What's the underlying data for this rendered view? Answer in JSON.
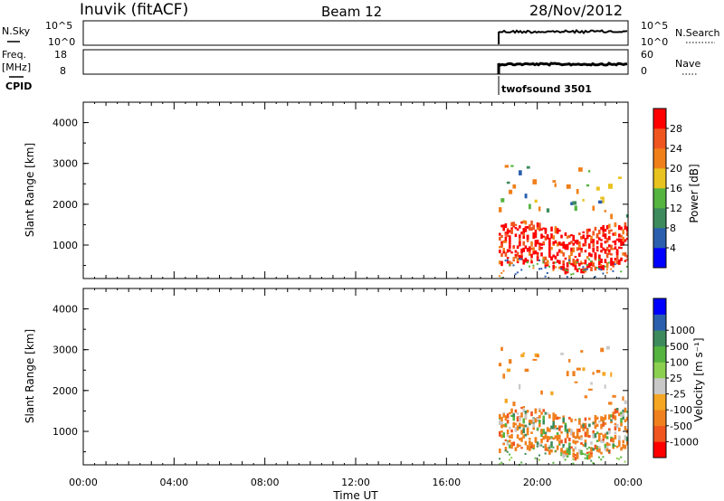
{
  "header": {
    "station": "Inuvik (fitACF)",
    "beam": "Beam 12",
    "date": "28/Nov/2012"
  },
  "left_labels": {
    "nsky": "N.Sky",
    "freq": "Freq.",
    "mhz": "[MHz]",
    "cpid": "CPID"
  },
  "right_labels": {
    "nsearch": "N.Search",
    "nave": "Nave"
  },
  "noise_panel": {
    "left_ticks": [
      "10^5",
      "10^0"
    ],
    "right_ticks": [
      "10^5",
      "10^0"
    ]
  },
  "freq_panel": {
    "left_ticks": [
      "18",
      "8"
    ],
    "right_ticks": [
      "60",
      "0"
    ]
  },
  "cpid_text": "twofsound 3501",
  "time_axis": {
    "label": "Time UT",
    "ticks": [
      "00:00",
      "04:00",
      "08:00",
      "12:00",
      "16:00",
      "20:00",
      "00:00"
    ]
  },
  "colors": {
    "power": [
      "#0000ff",
      "#2b5fae",
      "#3d8b5c",
      "#55b33f",
      "#e8c21e",
      "#f07f1a",
      "#f05520",
      "#ff0000"
    ],
    "velocity": [
      "#ff0000",
      "#f05520",
      "#f0801e",
      "#f5a623",
      "#c8c8c8",
      "#8cd050",
      "#55b33f",
      "#3d8b5c",
      "#2b5fae",
      "#0000ff"
    ]
  },
  "chart_data": [
    {
      "type": "heatmap",
      "title": "",
      "ylabel": "Slant Range [km]",
      "xlabel": "",
      "yticks": [
        "1000",
        "2000",
        "3000",
        "4000"
      ],
      "ylim": [
        180,
        4500
      ],
      "xlim_hours": [
        0,
        24
      ],
      "colorbar_label": "Power [dB]",
      "colorbar_ticks": [
        "4",
        "8",
        "12",
        "16",
        "20",
        "24",
        "28"
      ],
      "colorbar_range": [
        0,
        32
      ],
      "data_start_hour": 18.3,
      "features": [
        {
          "desc": "dense ionospheric band",
          "x_hours": [
            18.3,
            24
          ],
          "range_km": [
            400,
            1500
          ],
          "value_db": 28
        },
        {
          "desc": "near-range scatter",
          "x_hours": [
            18.3,
            24
          ],
          "range_km": [
            180,
            700
          ],
          "value_db": 10
        },
        {
          "desc": "mid-range scatter",
          "x_hours": [
            18.3,
            24
          ],
          "range_km": [
            1500,
            3200
          ],
          "value_db": 18
        }
      ]
    },
    {
      "type": "heatmap",
      "title": "",
      "ylabel": "Slant Range [km]",
      "xlabel": "Time UT",
      "yticks": [
        "1000",
        "2000",
        "3000",
        "4000"
      ],
      "ylim": [
        180,
        4500
      ],
      "xlim_hours": [
        0,
        24
      ],
      "colorbar_label": "Velocity [m s⁻¹]",
      "colorbar_ticks": [
        "1000",
        "500",
        "100",
        "25",
        "-25",
        "-100",
        "-500",
        "-1000"
      ],
      "data_start_hour": 18.3,
      "features": [
        {
          "desc": "dominant negative velocity band",
          "x_hours": [
            18.3,
            24
          ],
          "range_km": [
            700,
            1600
          ],
          "value_ms": -200
        },
        {
          "desc": "near-zero ground scatter",
          "x_hours": [
            18.3,
            24
          ],
          "range_km": [
            800,
            1500
          ],
          "value_ms": 0
        },
        {
          "desc": "positive velocity near range",
          "x_hours": [
            18.3,
            24
          ],
          "range_km": [
            400,
            900
          ],
          "value_ms": 150
        }
      ]
    }
  ]
}
